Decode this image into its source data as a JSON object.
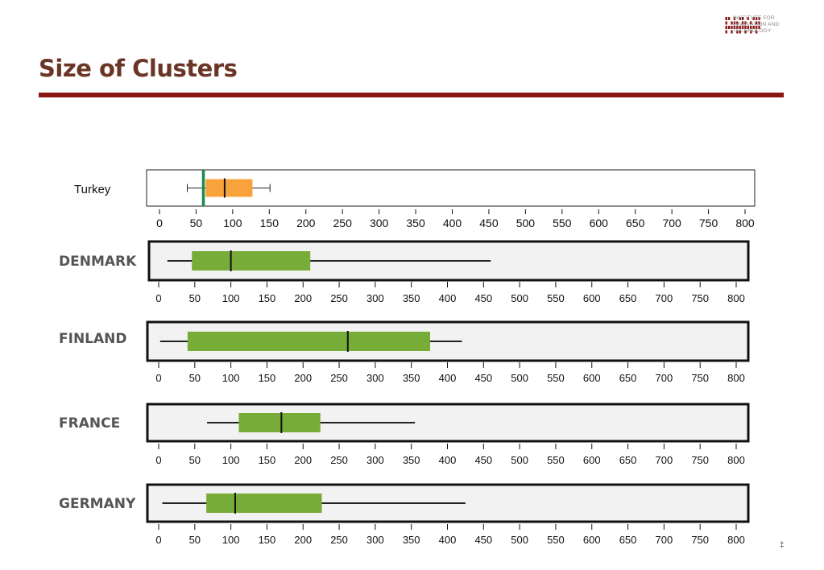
{
  "slide": {
    "title": "Size of Clusters",
    "page_number": "‡",
    "title_color": "#6b3526",
    "rule_color": "#8b1414"
  },
  "logo": {
    "lines": [
      "INSTITUTE FOR",
      "INNOVATION AND",
      "TECHNOLOGY"
    ],
    "color": "#8b1414"
  },
  "chart_data": [
    {
      "type": "box",
      "category": "Turkey",
      "xlim": [
        0,
        800
      ],
      "ticks": [
        0,
        50,
        100,
        150,
        200,
        250,
        300,
        350,
        400,
        450,
        500,
        550,
        600,
        650,
        700,
        750,
        800
      ],
      "whisker_low": 38,
      "q1": 63,
      "median": 89,
      "q3": 127,
      "whisker_high": 151,
      "reference_line": 60,
      "box_color": "#f7a23a",
      "reference_color": "#1a8a4a"
    },
    {
      "type": "box",
      "category": "DENMARK",
      "xlim": [
        0,
        800
      ],
      "ticks": [
        0,
        50,
        100,
        150,
        200,
        250,
        300,
        350,
        400,
        450,
        500,
        550,
        600,
        650,
        700,
        750,
        800
      ],
      "whisker_low": 12,
      "q1": 46,
      "median": 100,
      "q3": 210,
      "whisker_high": 460,
      "box_color": "#77ac38"
    },
    {
      "type": "box",
      "category": "FINLAND",
      "xlim": [
        0,
        800
      ],
      "ticks": [
        0,
        50,
        100,
        150,
        200,
        250,
        300,
        350,
        400,
        450,
        500,
        550,
        600,
        650,
        700,
        750,
        800
      ],
      "whisker_low": 2,
      "q1": 40,
      "median": 262,
      "q3": 376,
      "whisker_high": 420,
      "box_color": "#77ac38"
    },
    {
      "type": "box",
      "category": "FRANCE",
      "xlim": [
        0,
        800
      ],
      "ticks": [
        0,
        50,
        100,
        150,
        200,
        250,
        300,
        350,
        400,
        450,
        500,
        550,
        600,
        650,
        700,
        750,
        800
      ],
      "whisker_low": 67,
      "q1": 111,
      "median": 170,
      "q3": 224,
      "whisker_high": 355,
      "box_color": "#77ac38"
    },
    {
      "type": "box",
      "category": "GERMANY",
      "xlim": [
        0,
        800
      ],
      "ticks": [
        0,
        50,
        100,
        150,
        200,
        250,
        300,
        350,
        400,
        450,
        500,
        550,
        600,
        650,
        700,
        750,
        800
      ],
      "whisker_low": 5,
      "q1": 66,
      "median": 106,
      "q3": 226,
      "whisker_high": 425,
      "box_color": "#77ac38"
    }
  ]
}
